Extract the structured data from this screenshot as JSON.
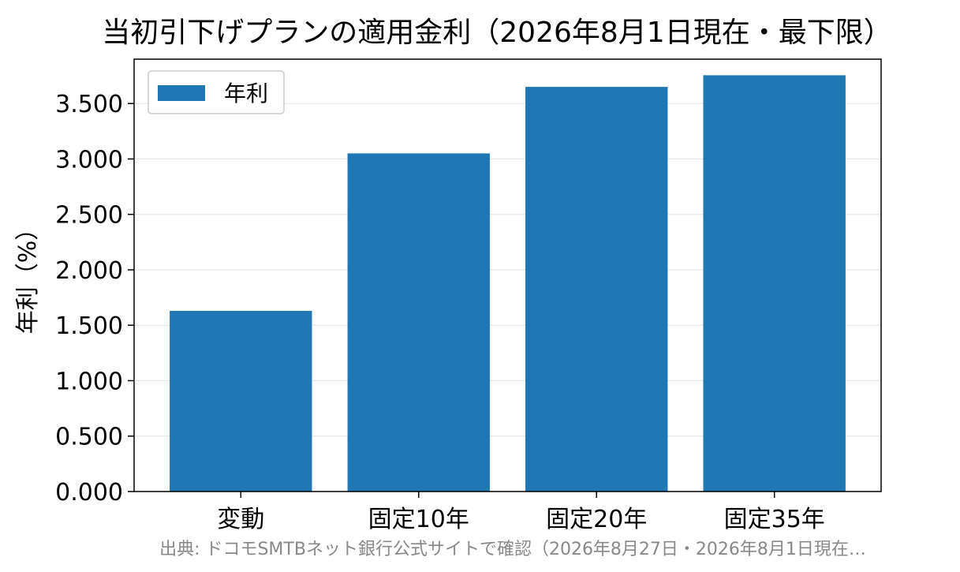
{
  "chart_data": {
    "type": "bar",
    "title": "当初引下げプランの適用金利（2026年8月1日現在・最下限）",
    "xlabel": "",
    "ylabel": "年利（%）",
    "categories": [
      "変動",
      "固定10年",
      "固定20年",
      "固定35年"
    ],
    "series": [
      {
        "name": "年利",
        "values": [
          1.63,
          3.05,
          3.65,
          3.755
        ]
      }
    ],
    "ylim": [
      0,
      3.9
    ],
    "yticks": [
      0,
      0.5,
      1.0,
      1.5,
      2.0,
      2.5,
      3.0,
      3.5
    ],
    "ytick_labels": [
      "0.000",
      "0.500",
      "1.000",
      "1.500",
      "2.000",
      "2.500",
      "3.000",
      "3.500"
    ],
    "grid": "horizontal",
    "legend_position": "top-left",
    "bar_color": "#1f77b4",
    "source_note": "出典: ドコモSMTBネット銀行公式サイトで確認（2026年8月27日・2026年8月1日現在…"
  }
}
